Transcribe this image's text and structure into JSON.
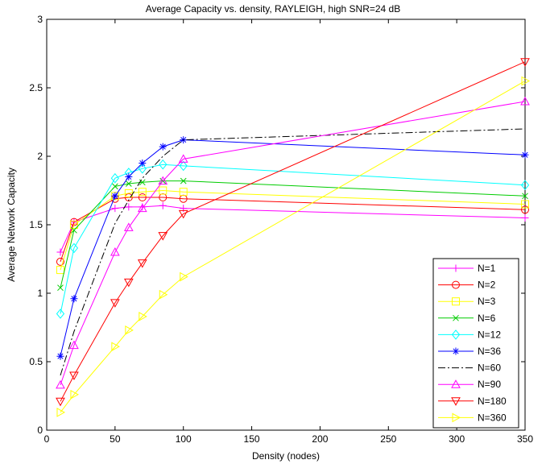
{
  "chart_data": {
    "type": "line",
    "title": "Average Capacity vs. density, RAYLEIGH, high SNR=24 dB",
    "xlabel": "Density (nodes)",
    "ylabel": "Average Network Capacity",
    "xlim": [
      0,
      350
    ],
    "ylim": [
      0,
      3
    ],
    "xticks": [
      0,
      50,
      100,
      150,
      200,
      250,
      300,
      350
    ],
    "yticks": [
      0,
      0.5,
      1,
      1.5,
      2,
      2.5,
      3
    ],
    "xtick_labels": [
      "0",
      "50",
      "100",
      "150",
      "200",
      "250",
      "300",
      "350"
    ],
    "ytick_labels": [
      "0",
      "0.5",
      "1",
      "1.5",
      "2",
      "2.5",
      "3"
    ],
    "grid": false,
    "legend_position": "bottom-right",
    "series": [
      {
        "name": "N=1",
        "color": "#ff00ff",
        "marker": "plus",
        "dash": "solid",
        "x": [
          10,
          20,
          50,
          60,
          70,
          85,
          100,
          350
        ],
        "y": [
          1.3,
          1.52,
          1.62,
          1.63,
          1.63,
          1.64,
          1.62,
          1.55
        ]
      },
      {
        "name": "N=2",
        "color": "#ff0000",
        "marker": "circle",
        "dash": "solid",
        "x": [
          10,
          20,
          50,
          60,
          70,
          85,
          100,
          350
        ],
        "y": [
          1.23,
          1.52,
          1.69,
          1.7,
          1.7,
          1.7,
          1.69,
          1.61
        ]
      },
      {
        "name": "N=3",
        "color": "#ffff00",
        "marker": "square",
        "dash": "solid",
        "x": [
          10,
          20,
          50,
          60,
          70,
          85,
          100,
          350
        ],
        "y": [
          1.17,
          1.5,
          1.71,
          1.73,
          1.74,
          1.75,
          1.74,
          1.65
        ]
      },
      {
        "name": "N=6",
        "color": "#00cc00",
        "marker": "x",
        "dash": "solid",
        "x": [
          10,
          20,
          50,
          60,
          70,
          85,
          100,
          350
        ],
        "y": [
          1.04,
          1.46,
          1.78,
          1.8,
          1.81,
          1.82,
          1.82,
          1.71
        ]
      },
      {
        "name": "N=12",
        "color": "#00ffff",
        "marker": "diamond",
        "dash": "solid",
        "x": [
          10,
          20,
          50,
          60,
          70,
          85,
          100,
          350
        ],
        "y": [
          0.85,
          1.33,
          1.84,
          1.88,
          1.91,
          1.94,
          1.93,
          1.79
        ]
      },
      {
        "name": "N=36",
        "color": "#0000ff",
        "marker": "star",
        "dash": "solid",
        "x": [
          10,
          20,
          50,
          60,
          70,
          85,
          100,
          350
        ],
        "y": [
          0.54,
          0.96,
          1.71,
          1.85,
          1.95,
          2.07,
          2.12,
          2.01
        ]
      },
      {
        "name": "N=60",
        "color": "#000000",
        "marker": "none",
        "dash": "dashdot",
        "x": [
          10,
          20,
          50,
          60,
          70,
          85,
          100,
          350
        ],
        "y": [
          0.4,
          0.72,
          1.51,
          1.68,
          1.84,
          2.0,
          2.12,
          2.2
        ]
      },
      {
        "name": "N=90",
        "color": "#ff00ff",
        "marker": "triangle-up",
        "dash": "solid",
        "x": [
          10,
          20,
          50,
          60,
          70,
          85,
          100,
          350
        ],
        "y": [
          0.33,
          0.62,
          1.3,
          1.48,
          1.62,
          1.82,
          1.98,
          2.4
        ]
      },
      {
        "name": "N=180",
        "color": "#ff0000",
        "marker": "triangle-down",
        "dash": "solid",
        "x": [
          10,
          20,
          50,
          60,
          70,
          85,
          100,
          350
        ],
        "y": [
          0.21,
          0.4,
          0.93,
          1.08,
          1.22,
          1.42,
          1.58,
          2.69
        ]
      },
      {
        "name": "N=360",
        "color": "#ffff00",
        "marker": "triangle-right",
        "dash": "solid",
        "x": [
          10,
          20,
          50,
          60,
          70,
          85,
          100,
          350
        ],
        "y": [
          0.13,
          0.26,
          0.61,
          0.73,
          0.83,
          0.99,
          1.12,
          2.55
        ]
      }
    ]
  }
}
